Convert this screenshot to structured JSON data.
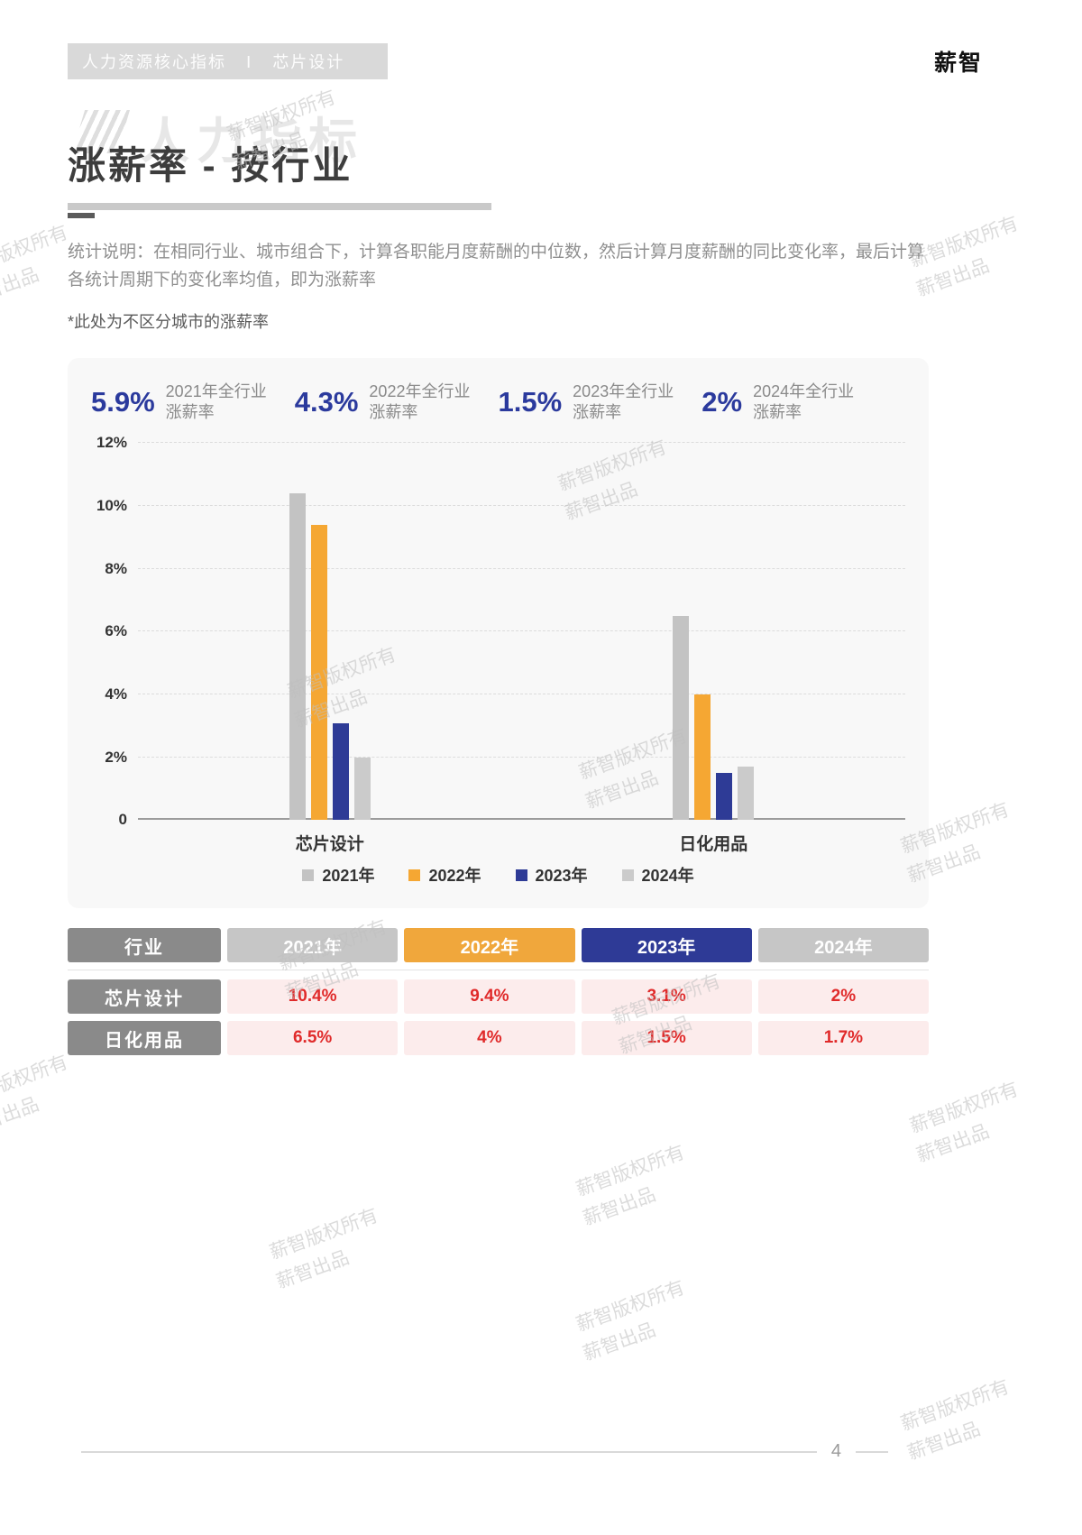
{
  "header": {
    "breadcrumb": "人力资源核心指标",
    "separator": "Ⅰ",
    "section": "芯片设计",
    "brand": "薪智"
  },
  "background_label": "人力指标",
  "title": "涨薪率 - 按行业",
  "description": "统计说明：在相同行业、城市组合下，计算各职能月度薪酬的中位数，然后计算月度薪酬的同比变化率，最后计算各统计周期下的变化率均值，即为涨薪率",
  "note": "*此处为不区分城市的涨薪率",
  "stats": [
    {
      "value": "5.9%",
      "label_top": "2021年全行业",
      "label_bottom": "涨薪率"
    },
    {
      "value": "4.3%",
      "label_top": "2022年全行业",
      "label_bottom": "涨薪率"
    },
    {
      "value": "1.5%",
      "label_top": "2023年全行业",
      "label_bottom": "涨薪率"
    },
    {
      "value": "2%",
      "label_top": "2024年全行业",
      "label_bottom": "涨薪率"
    }
  ],
  "chart_data": {
    "type": "bar",
    "title": "涨薪率 - 按行业",
    "categories": [
      "芯片设计",
      "日化用品"
    ],
    "series": [
      {
        "name": "2021年",
        "color": "#c3c3c3",
        "values": [
          10.4,
          6.5
        ]
      },
      {
        "name": "2022年",
        "color": "#f5a733",
        "values": [
          9.4,
          4
        ]
      },
      {
        "name": "2023年",
        "color": "#2e3b96",
        "values": [
          3.1,
          1.5
        ]
      },
      {
        "name": "2024年",
        "color": "#cbcbcb",
        "values": [
          2,
          1.7
        ]
      }
    ],
    "ymax": 12,
    "yticks": [
      {
        "v": 12,
        "label": "12%"
      },
      {
        "v": 10,
        "label": "10%"
      },
      {
        "v": 8,
        "label": "8%"
      },
      {
        "v": 6,
        "label": "6%"
      },
      {
        "v": 4,
        "label": "4%"
      },
      {
        "v": 2,
        "label": "2%"
      },
      {
        "v": 0,
        "label": "0"
      }
    ],
    "grid": true,
    "legend_position": "bottom"
  },
  "table": {
    "header_label": "行业",
    "year_headers": [
      {
        "label": "2021年",
        "color": "#c6c6c6"
      },
      {
        "label": "2022年",
        "color": "#f0a73c"
      },
      {
        "label": "2023年",
        "color": "#2e3a96"
      },
      {
        "label": "2024年",
        "color": "#c6c6c6"
      }
    ],
    "rows": [
      {
        "industry": "芯片设计",
        "values": [
          "10.4%",
          "9.4%",
          "3.1%",
          "2%"
        ]
      },
      {
        "industry": "日化用品",
        "values": [
          "6.5%",
          "4%",
          "1.5%",
          "1.7%"
        ]
      }
    ]
  },
  "watermark": {
    "line1": "薪智版权所有",
    "line2": "薪智出品"
  },
  "footer": {
    "page_number": "4"
  },
  "colors": {
    "accent_blue": "#2b3a9d",
    "bar_2021": "#c3c3c3",
    "bar_2022": "#f5a733",
    "bar_2023": "#2e3b96",
    "bar_2024": "#cbcbcb",
    "table_value_text": "#e02a2a",
    "table_value_bg": "#fcecec",
    "card_bg": "#f8f8f8"
  }
}
